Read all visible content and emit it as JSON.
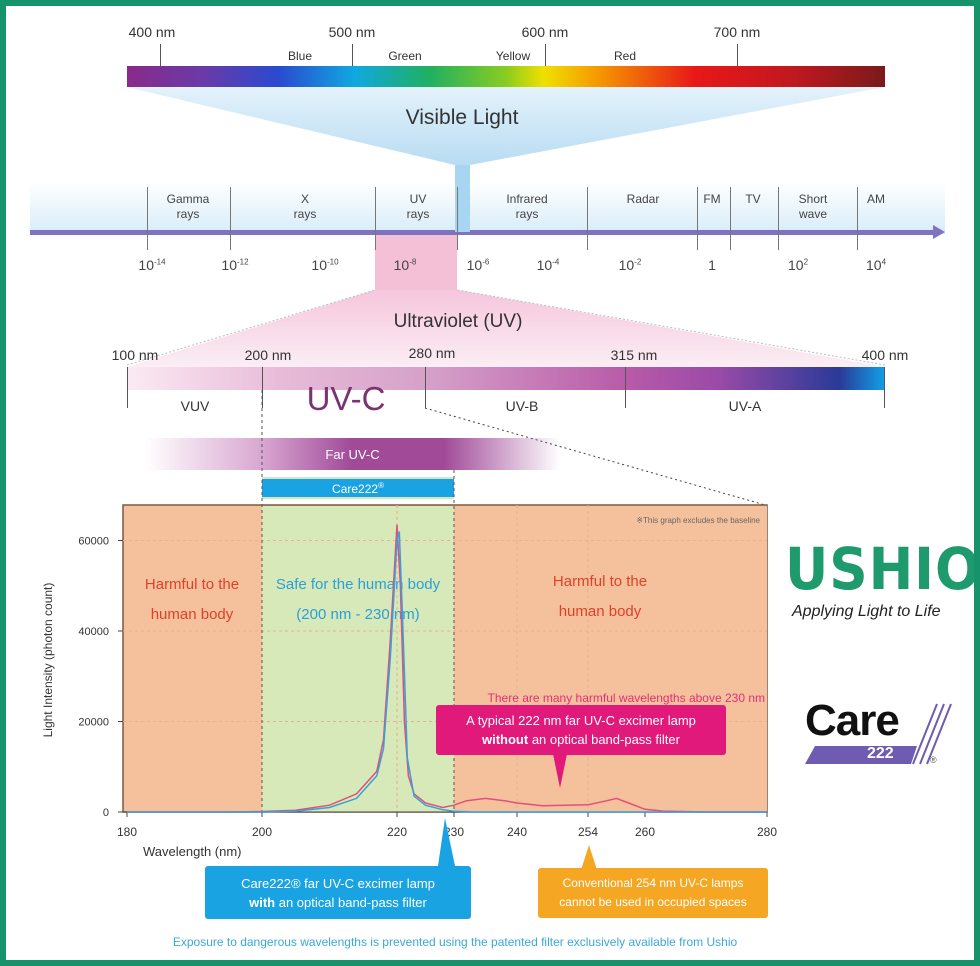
{
  "visible": {
    "title": "Visible Light",
    "wavelengths": [
      "400 nm",
      "500 nm",
      "600 nm",
      "700 nm"
    ],
    "colors": [
      "Blue",
      "Green",
      "Yellow",
      "Red"
    ]
  },
  "em_spectrum": {
    "bands": [
      {
        "l1": "Gamma",
        "l2": "rays"
      },
      {
        "l1": "X",
        "l2": "rays"
      },
      {
        "l1": "UV",
        "l2": "rays"
      },
      {
        "l1": "Infrared",
        "l2": "rays"
      },
      {
        "l1": "Radar",
        "l2": ""
      },
      {
        "l1": "FM",
        "l2": ""
      },
      {
        "l1": "TV",
        "l2": ""
      },
      {
        "l1": "Short",
        "l2": "wave"
      },
      {
        "l1": "AM",
        "l2": ""
      }
    ],
    "scale": [
      {
        "base": "10",
        "exp": "-14"
      },
      {
        "base": "10",
        "exp": "-12"
      },
      {
        "base": "10",
        "exp": "-10"
      },
      {
        "base": "10",
        "exp": "-8"
      },
      {
        "base": "10",
        "exp": "-6"
      },
      {
        "base": "10",
        "exp": "-4"
      },
      {
        "base": "10",
        "exp": "-2"
      },
      {
        "base": "1",
        "exp": ""
      },
      {
        "base": "10",
        "exp": "2"
      },
      {
        "base": "10",
        "exp": "4"
      }
    ]
  },
  "uv": {
    "title": "Ultraviolet (UV)",
    "wavelengths": [
      "100 nm",
      "200 nm",
      "280 nm",
      "315 nm",
      "400 nm"
    ],
    "bands": [
      "VUV",
      "UV-C",
      "UV-B",
      "UV-A"
    ],
    "far_uvc": "Far UV-C",
    "care222": "Care222",
    "care222_mark": "®"
  },
  "chart_data": {
    "type": "line",
    "xlabel": "Wavelength (nm)",
    "ylabel": "Light Intensity (photon count)",
    "x_ticks": [
      "180",
      "200",
      "220",
      "230",
      "240",
      "254",
      "260",
      "280"
    ],
    "y_ticks": [
      "0",
      "20000",
      "40000",
      "60000"
    ],
    "ylim": [
      0,
      68000
    ],
    "note": "※This graph excludes the baseline",
    "regions": [
      {
        "range": [
          180,
          200
        ],
        "label1": "Harmful to the",
        "label2": "human body",
        "color": "#f5c19c"
      },
      {
        "range": [
          200,
          230
        ],
        "label1": "Safe for the human body",
        "label2": "(200 nm - 230 nm)",
        "color": "#d7e8b9"
      },
      {
        "range": [
          230,
          280
        ],
        "label1": "Harmful to the",
        "label2": "human body",
        "color": "#f5c19c"
      }
    ],
    "annotation": "There are many harmful wavelengths above 230 nm",
    "series": [
      {
        "color": "#e0507a",
        "points": [
          [
            180,
            0
          ],
          [
            195,
            0
          ],
          [
            200,
            100
          ],
          [
            205,
            400
          ],
          [
            210,
            1500
          ],
          [
            214,
            4000
          ],
          [
            217,
            9000
          ],
          [
            218,
            16000
          ],
          [
            219,
            38000
          ],
          [
            220,
            63500
          ],
          [
            220.6,
            50000
          ],
          [
            221.3,
            20000
          ],
          [
            222,
            8000
          ],
          [
            223,
            4000
          ],
          [
            225,
            2000
          ],
          [
            228,
            1000
          ],
          [
            230,
            1500
          ],
          [
            232,
            2500
          ],
          [
            235,
            3000
          ],
          [
            238,
            2500
          ],
          [
            240,
            2000
          ],
          [
            245,
            1400
          ],
          [
            254,
            1600
          ],
          [
            256,
            2500
          ],
          [
            257,
            3000
          ],
          [
            258,
            2200
          ],
          [
            260,
            600
          ],
          [
            263,
            200
          ],
          [
            270,
            0
          ],
          [
            280,
            0
          ]
        ]
      },
      {
        "color": "#3aa0d8",
        "points": [
          [
            180,
            0
          ],
          [
            200,
            0
          ],
          [
            205,
            200
          ],
          [
            210,
            1000
          ],
          [
            214,
            3000
          ],
          [
            217,
            8000
          ],
          [
            218,
            14000
          ],
          [
            219,
            34000
          ],
          [
            220,
            60000
          ],
          [
            220.4,
            62000
          ],
          [
            221,
            42000
          ],
          [
            221.8,
            12000
          ],
          [
            223,
            3500
          ],
          [
            225,
            1500
          ],
          [
            228,
            500
          ],
          [
            230,
            150
          ],
          [
            233,
            0
          ],
          [
            280,
            0
          ]
        ]
      }
    ]
  },
  "callouts": {
    "without_line1": "A typical 222 nm far UV-C excimer lamp",
    "without_bold": "without",
    "without_rest": " an optical band-pass filter",
    "with_line1": "Care222® far UV-C excimer lamp",
    "with_bold": "with",
    "with_rest": " an optical band-pass filter",
    "conventional_line1": "Conventional 254 nm UV-C lamps",
    "conventional_line2": "cannot be used in occupied spaces"
  },
  "footer": "Exposure to dangerous wavelengths is prevented using the patented filter exclusively available from Ushio",
  "logos": {
    "ushio": "USHIO",
    "tagline": "Applying Light to Life",
    "care": "Care",
    "care_num": "222",
    "registered": "®",
    "ushio_color": "#1f9a6c",
    "care_purple": "#6f5bb0"
  }
}
